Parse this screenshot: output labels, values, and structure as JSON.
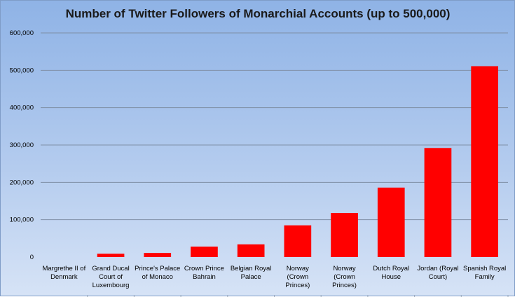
{
  "chart_data": {
    "type": "bar",
    "title": "Number of Twitter Followers of Monarchial Accounts  (up to 500,000)",
    "xlabel": "",
    "ylabel": "",
    "categories": [
      [
        "Margrethe II of",
        "Denmark"
      ],
      [
        "Grand Ducal",
        "Court of",
        "Luxembourg"
      ],
      [
        "Prince's Palace",
        "of Monaco"
      ],
      [
        "Crown Prince",
        "Bahrain"
      ],
      [
        "Belgian Royal",
        "Palace"
      ],
      [
        "Norway",
        "(Crown",
        "Princes)"
      ],
      [
        "Norway",
        "(Crown",
        "Princes)"
      ],
      [
        "Dutch Royal",
        "House"
      ],
      [
        "Jordan (Royal",
        "Court)"
      ],
      [
        "Spanish Royal",
        "Family"
      ]
    ],
    "values": [
      0,
      9000,
      11000,
      28000,
      34000,
      85000,
      118000,
      186000,
      292000,
      511000
    ],
    "ylim": [
      0,
      600000
    ],
    "yticks": [
      0,
      100000,
      200000,
      300000,
      400000,
      500000,
      600000
    ],
    "ytick_labels": [
      "0",
      "100,000",
      "200,000",
      "300,000",
      "400,000",
      "500,000",
      "600,000"
    ],
    "grid": true,
    "legend": "none",
    "colors": {
      "bar": "#ff0000",
      "grid": "#7f8fa6"
    }
  }
}
